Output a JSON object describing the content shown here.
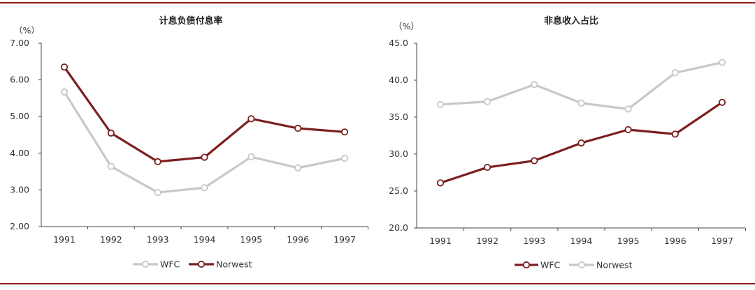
{
  "colors": {
    "wfc": "#c8c8c8",
    "norwest": "#7b1f1f",
    "rule": "#8b1a1a"
  },
  "chart_data": [
    {
      "type": "line",
      "title": "计息负债付息率",
      "unit": "（%）",
      "categories": [
        "1991",
        "1992",
        "1993",
        "1994",
        "1995",
        "1996",
        "1997"
      ],
      "ylim": [
        2.0,
        7.0
      ],
      "yticks": [
        "2.00",
        "3.00",
        "4.00",
        "5.00",
        "6.00",
        "7.00"
      ],
      "series": [
        {
          "name": "WFC",
          "color": "#c8c8c8",
          "values": [
            5.67,
            3.64,
            2.93,
            3.06,
            3.9,
            3.6,
            3.86
          ]
        },
        {
          "name": "Norwest",
          "color": "#7b1f1f",
          "values": [
            6.35,
            4.55,
            3.77,
            3.89,
            4.94,
            4.68,
            4.58
          ]
        }
      ],
      "legend": [
        "WFC",
        "Norwest"
      ]
    },
    {
      "type": "line",
      "title": "非息收入占比",
      "unit": "（%）",
      "categories": [
        "1991",
        "1992",
        "1993",
        "1994",
        "1995",
        "1996",
        "1997"
      ],
      "ylim": [
        20.0,
        45.0
      ],
      "yticks": [
        "20.0",
        "25.0",
        "30.0",
        "35.0",
        "40.0",
        "45.0"
      ],
      "series": [
        {
          "name": "WFC",
          "color": "#7b1f1f",
          "values": [
            26.1,
            28.2,
            29.1,
            31.5,
            33.3,
            32.7,
            37.0
          ]
        },
        {
          "name": "Norwest",
          "color": "#c8c8c8",
          "values": [
            36.7,
            37.1,
            39.4,
            36.9,
            36.1,
            41.0,
            42.4
          ]
        }
      ],
      "legend": [
        "WFC",
        "Norwest"
      ]
    }
  ]
}
